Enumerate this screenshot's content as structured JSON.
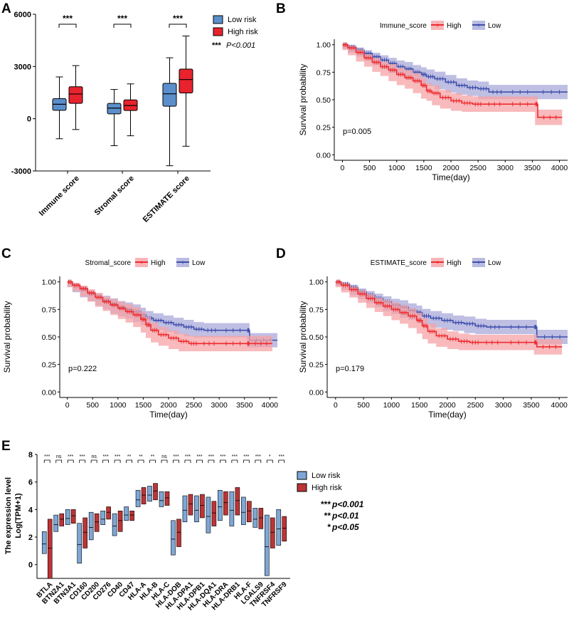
{
  "colors": {
    "low": "#5b8fcb",
    "high": "#e8232d",
    "km_high": "#ed2b2f",
    "km_low": "#3f4faa",
    "km_high_band": "#f5a3a6",
    "km_low_band": "#a9aadb",
    "e_low": "#7ea7d6",
    "e_high": "#bc3437"
  },
  "chart_data": [
    {
      "panel": "A",
      "type": "box",
      "categories": [
        "Immune score",
        "Stromal score",
        "ESTIMATE score"
      ],
      "series": [
        {
          "name": "Low risk",
          "boxes": [
            {
              "min": -1150,
              "q1": 480,
              "median": 830,
              "q3": 1150,
              "max": 2400
            },
            {
              "min": -1550,
              "q1": 280,
              "median": 610,
              "q3": 880,
              "max": 1680
            },
            {
              "min": -2700,
              "q1": 720,
              "median": 1430,
              "q3": 2030,
              "max": 3500
            }
          ]
        },
        {
          "name": "High risk",
          "boxes": [
            {
              "min": -620,
              "q1": 880,
              "median": 1420,
              "q3": 1840,
              "max": 3050
            },
            {
              "min": -980,
              "q1": 470,
              "median": 760,
              "q3": 1080,
              "max": 2000
            },
            {
              "min": -1580,
              "q1": 1480,
              "median": 2250,
              "q3": 2850,
              "max": 4750
            }
          ]
        }
      ],
      "significance": [
        "***",
        "***",
        "***"
      ],
      "ylim": [
        -3000,
        6000
      ],
      "yticks": [
        "-3000",
        "0",
        "3000",
        "6000"
      ],
      "legend": [
        "Low risk",
        "High risk"
      ],
      "legend_note_stars": "***",
      "legend_note_text": "P<0.001"
    },
    {
      "panel": "B",
      "type": "line",
      "legend_title": "Immune_score",
      "legend": [
        "High",
        "Low"
      ],
      "p_label": "p=0.005",
      "xlabel": "Time(day)",
      "ylabel": "Survival probability",
      "xlim": [
        -150,
        4150
      ],
      "ylim": [
        -0.05,
        1.05
      ],
      "xticks": [
        "0",
        "500",
        "1000",
        "1500",
        "2000",
        "2500",
        "3000",
        "3500",
        "4000"
      ],
      "yticks": [
        "0.00",
        "0.25",
        "0.50",
        "0.75",
        "1.00"
      ],
      "series": [
        {
          "name": "High",
          "x": [
            0,
            100,
            250,
            400,
            550,
            700,
            850,
            1000,
            1150,
            1300,
            1450,
            1550,
            1650,
            1800,
            2000,
            2200,
            2400,
            2600,
            3000,
            3550,
            3600,
            4050
          ],
          "y": [
            1.0,
            0.97,
            0.93,
            0.88,
            0.84,
            0.8,
            0.77,
            0.73,
            0.7,
            0.67,
            0.63,
            0.58,
            0.56,
            0.52,
            0.49,
            0.47,
            0.46,
            0.46,
            0.46,
            0.46,
            0.34,
            0.34
          ]
        },
        {
          "name": "Low",
          "x": [
            0,
            100,
            250,
            400,
            550,
            700,
            850,
            1000,
            1150,
            1300,
            1450,
            1550,
            1700,
            1900,
            2100,
            2300,
            2500,
            2700,
            3000,
            3550,
            4150
          ],
          "y": [
            1.0,
            0.98,
            0.95,
            0.92,
            0.89,
            0.86,
            0.83,
            0.8,
            0.78,
            0.75,
            0.73,
            0.71,
            0.69,
            0.66,
            0.63,
            0.61,
            0.6,
            0.57,
            0.57,
            0.57,
            0.57
          ]
        }
      ]
    },
    {
      "panel": "C",
      "type": "line",
      "legend_title": "Stromal_score",
      "legend": [
        "High",
        "Low"
      ],
      "p_label": "p=0.222",
      "xlabel": "Time(day)",
      "ylabel": "Survival probability",
      "xlim": [
        -150,
        4150
      ],
      "ylim": [
        -0.05,
        1.05
      ],
      "xticks": [
        "0",
        "500",
        "1000",
        "1500",
        "2000",
        "2500",
        "3000",
        "3500",
        "4000"
      ],
      "yticks": [
        "0.00",
        "0.25",
        "0.50",
        "0.75",
        "1.00"
      ],
      "series": [
        {
          "name": "High",
          "x": [
            0,
            100,
            250,
            400,
            550,
            700,
            850,
            1000,
            1150,
            1300,
            1450,
            1550,
            1650,
            1800,
            2000,
            2200,
            2400,
            2600,
            3000,
            3550,
            3600,
            4050
          ],
          "y": [
            1.0,
            0.97,
            0.94,
            0.9,
            0.86,
            0.82,
            0.79,
            0.76,
            0.73,
            0.7,
            0.66,
            0.61,
            0.56,
            0.52,
            0.49,
            0.46,
            0.44,
            0.44,
            0.44,
            0.44,
            0.44,
            0.44
          ]
        },
        {
          "name": "Low",
          "x": [
            0,
            100,
            250,
            400,
            550,
            700,
            850,
            1000,
            1150,
            1300,
            1450,
            1550,
            1700,
            1900,
            2100,
            2300,
            2500,
            2700,
            3000,
            3550,
            3600,
            4150
          ],
          "y": [
            1.0,
            0.97,
            0.93,
            0.89,
            0.86,
            0.83,
            0.8,
            0.77,
            0.75,
            0.73,
            0.7,
            0.67,
            0.65,
            0.63,
            0.61,
            0.59,
            0.57,
            0.56,
            0.56,
            0.56,
            0.47,
            0.47
          ]
        }
      ]
    },
    {
      "panel": "D",
      "type": "line",
      "legend_title": "ESTIMATE_score",
      "legend": [
        "High",
        "Low"
      ],
      "p_label": "p=0.179",
      "xlabel": "Time(day)",
      "ylabel": "Survival probability",
      "xlim": [
        -150,
        4150
      ],
      "ylim": [
        -0.05,
        1.05
      ],
      "xticks": [
        "0",
        "500",
        "1000",
        "1500",
        "2000",
        "2500",
        "3000",
        "3500",
        "4000"
      ],
      "yticks": [
        "0.00",
        "0.25",
        "0.50",
        "0.75",
        "1.00"
      ],
      "series": [
        {
          "name": "High",
          "x": [
            0,
            100,
            250,
            400,
            550,
            700,
            850,
            1000,
            1150,
            1300,
            1450,
            1550,
            1650,
            1800,
            2000,
            2200,
            2400,
            2600,
            3000,
            3550,
            3600,
            4050
          ],
          "y": [
            1.0,
            0.97,
            0.93,
            0.89,
            0.85,
            0.81,
            0.78,
            0.75,
            0.72,
            0.69,
            0.65,
            0.6,
            0.55,
            0.51,
            0.48,
            0.46,
            0.45,
            0.45,
            0.45,
            0.45,
            0.41,
            0.41
          ]
        },
        {
          "name": "Low",
          "x": [
            0,
            100,
            250,
            400,
            550,
            700,
            850,
            1000,
            1150,
            1300,
            1450,
            1550,
            1700,
            1900,
            2100,
            2300,
            2500,
            2700,
            3000,
            3550,
            3600,
            4150
          ],
          "y": [
            1.0,
            0.98,
            0.95,
            0.91,
            0.88,
            0.85,
            0.82,
            0.79,
            0.77,
            0.74,
            0.72,
            0.69,
            0.67,
            0.65,
            0.63,
            0.62,
            0.6,
            0.59,
            0.59,
            0.59,
            0.5,
            0.5
          ]
        }
      ]
    },
    {
      "panel": "E",
      "type": "box",
      "title": "",
      "ylabel": "The expression level",
      "ylabel2": "Log(TPM+1)",
      "ylim": [
        -1,
        8
      ],
      "yticks": [
        "0",
        "2",
        "4",
        "6",
        "8"
      ],
      "legend": [
        "Low risk",
        "High risk"
      ],
      "sig_key": [
        {
          "stars": "***",
          "text": "p<0.001"
        },
        {
          "stars": "**",
          "text": "p<0.01"
        },
        {
          "stars": "*",
          "text": "p<0.05"
        }
      ],
      "categories": [
        "BTLA",
        "BTN2A1",
        "BTN3A1",
        "CD160",
        "CD200",
        "CD276",
        "CD40",
        "CD47",
        "HLA-A",
        "HLA-B",
        "HLA-C",
        "HLA-DOB",
        "HLA-DPA1",
        "HLA-DPB1",
        "HLA-DQA1",
        "HLA-DRA",
        "HLA-DRB1",
        "HLA-F",
        "LGALS9",
        "TNFRSF4",
        "TNFRSF9"
      ],
      "significance": [
        "***",
        "ns",
        "***",
        "***",
        "ns",
        "***",
        "***",
        "**",
        "**",
        "**",
        "ns",
        "***",
        "***",
        "***",
        "***",
        "***",
        "***",
        "***",
        "***",
        "*",
        "***"
      ],
      "series": [
        {
          "name": "Low risk",
          "boxes": [
            [
              0.8,
              2.4
            ],
            [
              2.4,
              3.6
            ],
            [
              2.9,
              4.0
            ],
            [
              0.1,
              3.0
            ],
            [
              1.8,
              3.8
            ],
            [
              2.9,
              3.9
            ],
            [
              2.1,
              3.7
            ],
            [
              3.2,
              4.2
            ],
            [
              4.2,
              5.4
            ],
            [
              4.6,
              5.7
            ],
            [
              4.2,
              5.3
            ],
            [
              0.7,
              3.2
            ],
            [
              3.1,
              5.0
            ],
            [
              3.1,
              5.0
            ],
            [
              2.3,
              4.9
            ],
            [
              3.2,
              5.4
            ],
            [
              2.8,
              5.3
            ],
            [
              2.9,
              4.9
            ],
            [
              2.7,
              4.1
            ],
            [
              -0.8,
              3.6
            ],
            [
              1.4,
              4.0
            ]
          ]
        },
        {
          "name": "High risk",
          "boxes": [
            [
              -1.0,
              3.3
            ],
            [
              2.8,
              3.7
            ],
            [
              3.0,
              4.0
            ],
            [
              1.2,
              3.4
            ],
            [
              2.4,
              3.7
            ],
            [
              3.3,
              4.2
            ],
            [
              2.4,
              3.9
            ],
            [
              3.2,
              3.9
            ],
            [
              4.4,
              5.6
            ],
            [
              4.7,
              5.9
            ],
            [
              4.3,
              5.3
            ],
            [
              1.3,
              3.3
            ],
            [
              3.6,
              5.1
            ],
            [
              3.4,
              5.1
            ],
            [
              2.8,
              4.6
            ],
            [
              3.6,
              5.3
            ],
            [
              3.6,
              5.6
            ],
            [
              3.1,
              4.6
            ],
            [
              2.6,
              4.1
            ],
            [
              1.2,
              3.4
            ],
            [
              1.7,
              3.5
            ]
          ]
        }
      ]
    }
  ]
}
